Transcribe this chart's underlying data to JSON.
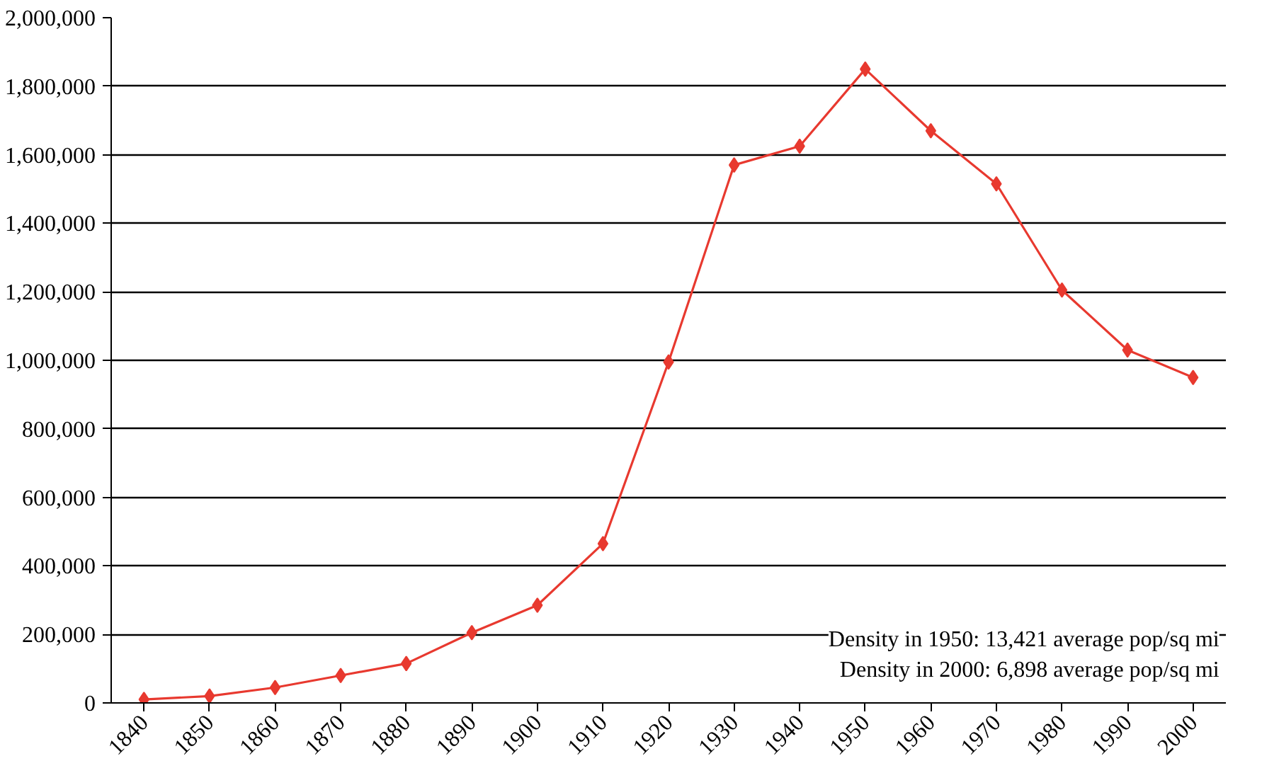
{
  "chart_data": {
    "type": "line",
    "categories": [
      "1840",
      "1850",
      "1860",
      "1870",
      "1880",
      "1890",
      "1900",
      "1910",
      "1920",
      "1930",
      "1940",
      "1950",
      "1960",
      "1970",
      "1980",
      "1990",
      "2000"
    ],
    "series": [
      {
        "color": "#e8392f",
        "values": [
          10000,
          20000,
          45000,
          80000,
          115000,
          205000,
          285000,
          465000,
          995000,
          1570000,
          1625000,
          1850000,
          1670000,
          1515000,
          1205000,
          1030000,
          950000
        ]
      }
    ],
    "ylim": [
      0,
      2000000
    ],
    "yticks": [
      {
        "value": 0,
        "label": "0"
      },
      {
        "value": 200000,
        "label": "200,000"
      },
      {
        "value": 400000,
        "label": "400,000"
      },
      {
        "value": 600000,
        "label": "600,000"
      },
      {
        "value": 800000,
        "label": "800,000"
      },
      {
        "value": 1000000,
        "label": "1,000,000"
      },
      {
        "value": 1200000,
        "label": "1,200,000"
      },
      {
        "value": 1400000,
        "label": "1,400,000"
      },
      {
        "value": 1600000,
        "label": "1,600,000"
      },
      {
        "value": 1800000,
        "label": "1,800,000"
      },
      {
        "value": 2000000,
        "label": "2,000,000"
      }
    ],
    "grid": "y",
    "marker": "diamond",
    "line_style": "solid",
    "annotations": [
      "Density in 1950: 13,421 average pop/sq mi\nDensity in 2000: 6,898 average pop/sq mi"
    ]
  }
}
